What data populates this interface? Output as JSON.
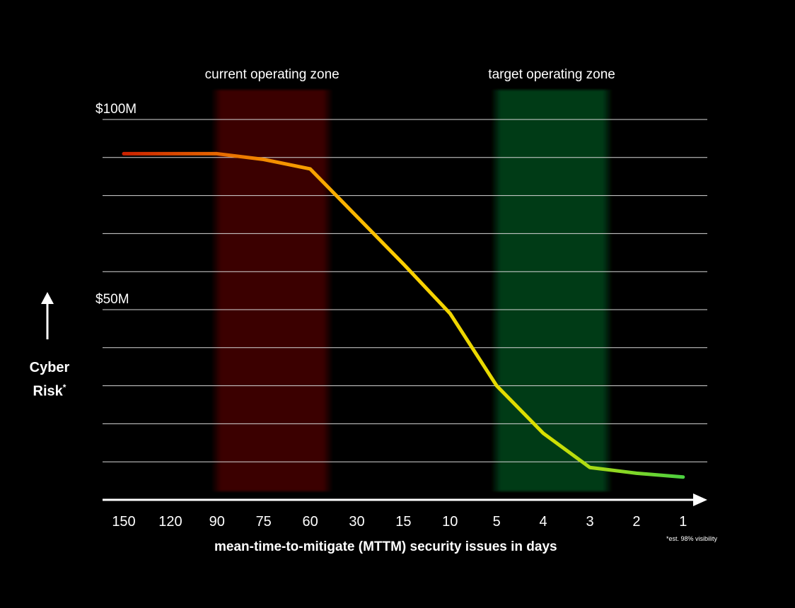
{
  "chart_data": {
    "type": "line",
    "zones": [
      {
        "label": "current operating zone",
        "x_from": "90",
        "x_to": "60",
        "color": "#3a0000"
      },
      {
        "label": "target operating zone",
        "x_from": "5",
        "x_to": "3",
        "color": "#003a17"
      }
    ],
    "ytick_labels": [
      {
        "value": 100,
        "label": "$100M"
      },
      {
        "value": 50,
        "label": "$50M"
      }
    ],
    "ylim": [
      0,
      100
    ],
    "y_gridlines": [
      100,
      90,
      80,
      70,
      60,
      50,
      40,
      30,
      20,
      10
    ],
    "categories": [
      "150",
      "120",
      "90",
      "75",
      "60",
      "30",
      "15",
      "10",
      "5",
      "4",
      "3",
      "2",
      "1"
    ],
    "values": [
      91,
      91,
      91,
      89.5,
      87,
      74.5,
      62,
      49,
      30,
      17.5,
      8.5,
      7,
      6
    ],
    "color_gradient": [
      "#cc2200",
      "#f28a00",
      "#ffd000",
      "#d8e000",
      "#4ad040"
    ],
    "ylabel": "Cyber Risk",
    "ylabel_marker": "*",
    "xlabel": "mean-time-to-mitigate (MTTM) security issues in days",
    "footnote": "*est. 98% visibility",
    "grid": true
  }
}
